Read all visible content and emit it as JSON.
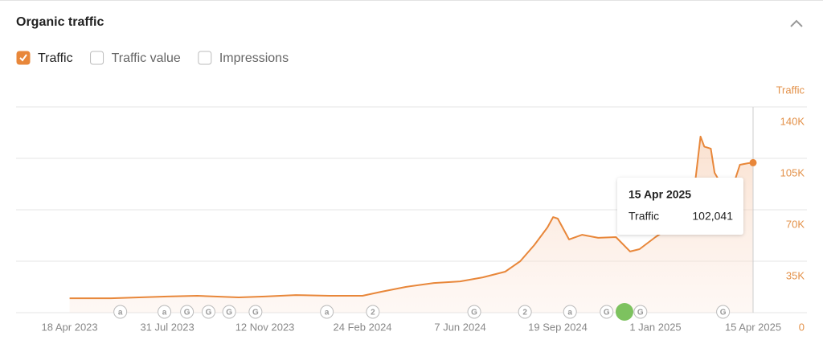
{
  "title": "Organic traffic",
  "toggles": [
    {
      "label": "Traffic",
      "checked": true
    },
    {
      "label": "Traffic value",
      "checked": false
    },
    {
      "label": "Impressions",
      "checked": false
    }
  ],
  "chart_data": {
    "type": "line",
    "y_label": "Traffic",
    "x": [
      "2023-04-18",
      "2023-06-01",
      "2023-07-31",
      "2023-09-01",
      "2023-10-15",
      "2023-11-12",
      "2023-12-15",
      "2024-01-20",
      "2024-02-24",
      "2024-03-15",
      "2024-04-10",
      "2024-05-10",
      "2024-06-07",
      "2024-07-01",
      "2024-07-25",
      "2024-08-10",
      "2024-08-25",
      "2024-09-08",
      "2024-09-14",
      "2024-09-19",
      "2024-10-01",
      "2024-10-15",
      "2024-11-01",
      "2024-11-20",
      "2024-12-05",
      "2024-12-15",
      "2025-01-01",
      "2025-01-20",
      "2025-02-10",
      "2025-02-18",
      "2025-02-22",
      "2025-03-01",
      "2025-03-05",
      "2025-03-10",
      "2025-03-25",
      "2025-04-01",
      "2025-04-10",
      "2025-04-15"
    ],
    "series": [
      {
        "name": "Traffic",
        "color": "#e8873a",
        "values": [
          9800,
          9800,
          11000,
          11500,
          10400,
          11000,
          12000,
          11500,
          11500,
          14200,
          17500,
          20200,
          21300,
          24000,
          27900,
          35000,
          46000,
          58000,
          65000,
          64000,
          49800,
          53000,
          50900,
          51400,
          41600,
          43200,
          51400,
          59600,
          76000,
          119800,
          113000,
          111600,
          95200,
          89700,
          87000,
          100600,
          101700,
          102041
        ]
      }
    ],
    "xlim": [
      "2023-02-20",
      "2025-04-15"
    ],
    "xticks": [
      {
        "value": "2023-04-18",
        "label": "18 Apr 2023"
      },
      {
        "value": "2023-07-31",
        "label": "31 Jul 2023"
      },
      {
        "value": "2023-11-12",
        "label": "12 Nov 2023"
      },
      {
        "value": "2024-02-24",
        "label": "24 Feb 2024"
      },
      {
        "value": "2024-06-07",
        "label": "7 Jun 2024"
      },
      {
        "value": "2024-09-19",
        "label": "19 Sep 2024"
      },
      {
        "value": "2025-01-01",
        "label": "1 Jan 2025"
      },
      {
        "value": "2025-04-15",
        "label": "15 Apr 2025"
      }
    ],
    "ylim": [
      0,
      140000
    ],
    "yticks": [
      0,
      {
        "value": 35000,
        "label": "35K"
      },
      {
        "value": 70000,
        "label": "70K"
      },
      {
        "value": 105000,
        "label": "105K"
      },
      {
        "value": 140000,
        "label": "140K"
      }
    ],
    "grid": true,
    "annotations": [
      {
        "date": "2023-06-11",
        "label": "a"
      },
      {
        "date": "2023-07-28",
        "label": "a"
      },
      {
        "date": "2023-08-21",
        "label": "G"
      },
      {
        "date": "2023-09-13",
        "label": "G"
      },
      {
        "date": "2023-10-05",
        "label": "G"
      },
      {
        "date": "2023-11-02",
        "label": "G"
      },
      {
        "date": "2024-01-17",
        "label": "a"
      },
      {
        "date": "2024-03-06",
        "label": "2"
      },
      {
        "date": "2024-06-22",
        "label": "G"
      },
      {
        "date": "2024-08-15",
        "label": "2"
      },
      {
        "date": "2024-10-02",
        "label": "a"
      },
      {
        "date": "2024-11-10",
        "label": "G"
      },
      {
        "date": "2024-12-16",
        "label": "G"
      },
      {
        "date": "2025-03-14",
        "label": "G"
      }
    ],
    "tooltip": {
      "title": "15 Apr 2025",
      "value": 102041,
      "value_label": "102,041"
    }
  }
}
